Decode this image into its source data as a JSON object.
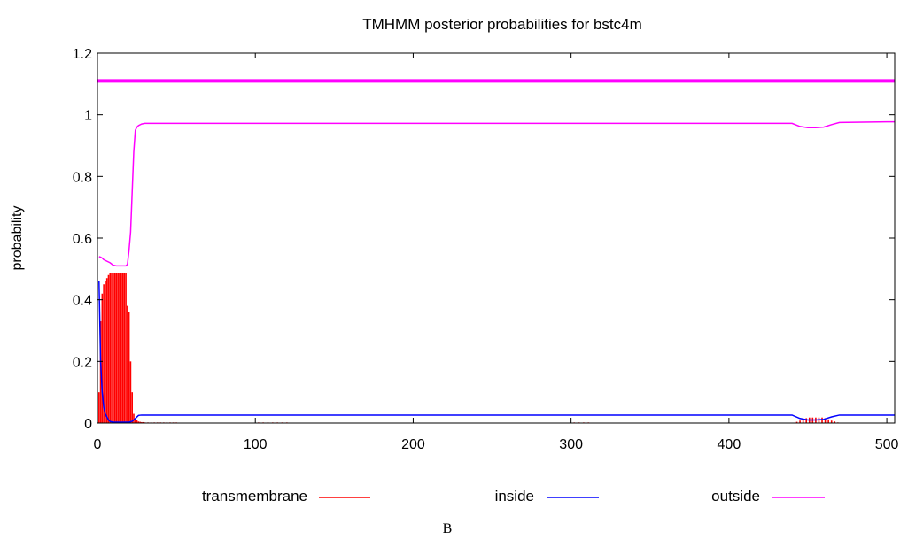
{
  "caption": "B",
  "chart_data": {
    "type": "line",
    "title": "TMHMM posterior probabilities for bstc4m",
    "xlabel": "",
    "ylabel": "probability",
    "xlim": [
      0,
      505
    ],
    "ylim": [
      0,
      1.2
    ],
    "x_ticks": [
      0,
      100,
      200,
      300,
      400,
      500
    ],
    "y_ticks": [
      0,
      0.2,
      0.4,
      0.6,
      0.8,
      1,
      1.2
    ],
    "y_tick_labels": [
      "0",
      "0.2",
      "0.4",
      "0.6",
      "0.8",
      "1",
      "1.2"
    ],
    "grid": false,
    "legend_position": "bottom",
    "transmembrane": {
      "name": "transmembrane",
      "color": "#ff0000",
      "style": "impulses",
      "x": [
        1,
        2,
        3,
        4,
        5,
        6,
        7,
        8,
        9,
        10,
        11,
        12,
        13,
        14,
        15,
        16,
        17,
        18,
        19,
        20,
        21,
        22,
        23,
        24,
        25,
        26,
        27,
        28,
        29,
        30,
        32,
        34,
        36,
        38,
        40,
        42,
        44,
        46,
        48,
        50,
        102,
        105,
        108,
        111,
        114,
        117,
        120,
        302,
        305,
        308,
        311,
        443,
        445,
        447,
        449,
        451,
        453,
        455,
        457,
        459,
        461,
        463,
        465,
        467,
        469
      ],
      "values": [
        0.1,
        0.33,
        0.42,
        0.45,
        0.46,
        0.47,
        0.48,
        0.485,
        0.485,
        0.485,
        0.485,
        0.485,
        0.485,
        0.485,
        0.485,
        0.485,
        0.485,
        0.485,
        0.38,
        0.36,
        0.2,
        0.1,
        0.03,
        0.015,
        0.01,
        0.005,
        0.004,
        0.003,
        0.003,
        0.002,
        0.002,
        0.002,
        0.002,
        0.002,
        0.002,
        0.002,
        0.002,
        0.002,
        0.002,
        0.002,
        0.002,
        0.002,
        0.002,
        0.002,
        0.002,
        0.002,
        0.002,
        0.002,
        0.002,
        0.002,
        0.002,
        0.004,
        0.008,
        0.012,
        0.016,
        0.018,
        0.018,
        0.018,
        0.018,
        0.018,
        0.016,
        0.012,
        0.008,
        0.005,
        0.002
      ]
    },
    "series": [
      {
        "name": "inside",
        "color": "#0000ff",
        "x": [
          1,
          2,
          3,
          4,
          5,
          6,
          7,
          8,
          10,
          12,
          14,
          16,
          18,
          20,
          22,
          24,
          26,
          28,
          30,
          100,
          200,
          300,
          400,
          440,
          445,
          450,
          455,
          460,
          465,
          470,
          500,
          505
        ],
        "values": [
          0.46,
          0.2,
          0.1,
          0.05,
          0.03,
          0.02,
          0.01,
          0.005,
          0.003,
          0.003,
          0.003,
          0.003,
          0.003,
          0.003,
          0.006,
          0.015,
          0.025,
          0.026,
          0.026,
          0.026,
          0.026,
          0.026,
          0.026,
          0.026,
          0.015,
          0.01,
          0.01,
          0.012,
          0.02,
          0.026,
          0.026,
          0.026
        ]
      },
      {
        "name": "outside",
        "color": "#ff00ff",
        "x": [
          1,
          2,
          3,
          4,
          6,
          8,
          10,
          12,
          14,
          16,
          18,
          19,
          20,
          21,
          22,
          23,
          24,
          25,
          26,
          28,
          30,
          40,
          100,
          200,
          300,
          400,
          440,
          445,
          450,
          455,
          460,
          465,
          470,
          500,
          505
        ],
        "values": [
          0.54,
          0.538,
          0.535,
          0.53,
          0.525,
          0.52,
          0.512,
          0.51,
          0.51,
          0.51,
          0.51,
          0.515,
          0.56,
          0.62,
          0.75,
          0.88,
          0.95,
          0.96,
          0.965,
          0.97,
          0.972,
          0.972,
          0.972,
          0.972,
          0.972,
          0.972,
          0.972,
          0.962,
          0.958,
          0.958,
          0.96,
          0.968,
          0.975,
          0.977,
          0.977
        ]
      }
    ],
    "reference_line": {
      "color": "#ff00ff",
      "y": 1.11
    }
  }
}
